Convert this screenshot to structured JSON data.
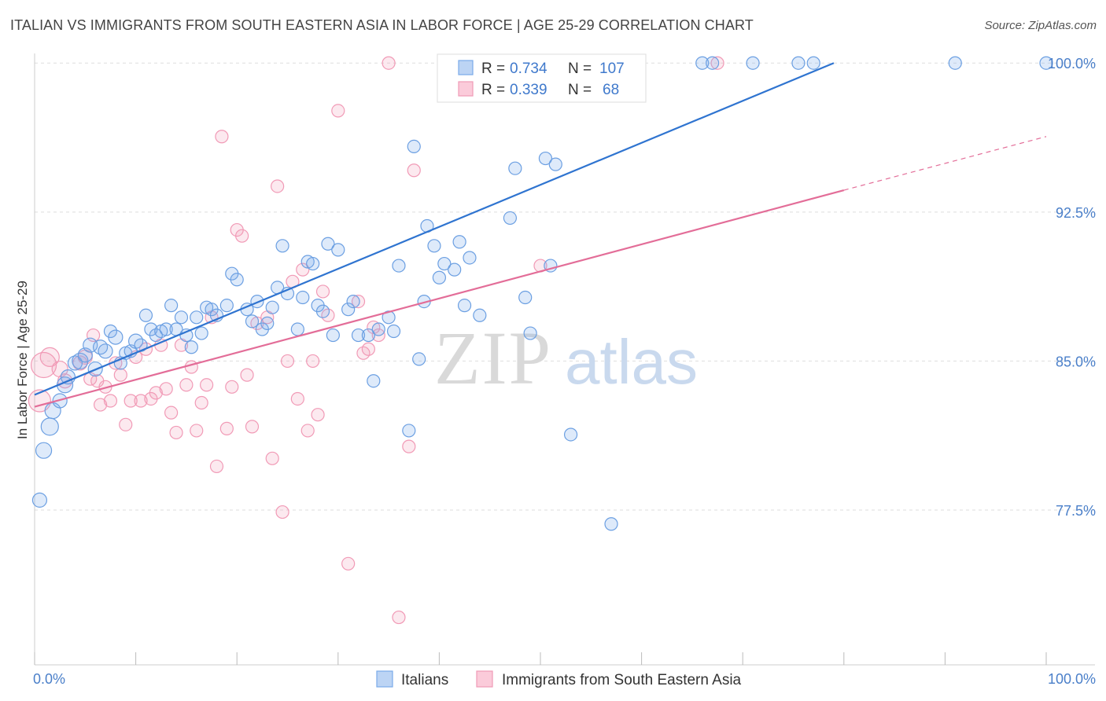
{
  "title": "ITALIAN VS IMMIGRANTS FROM SOUTH EASTERN ASIA IN LABOR FORCE | AGE 25-29 CORRELATION CHART",
  "source": "Source: ZipAtlas.com",
  "watermark": {
    "zip": "ZIP",
    "atlas": "atlas"
  },
  "legend": {
    "rows": [
      {
        "r_label": "R = ",
        "r_value": "0.734",
        "n_label": "N = ",
        "n_value": "107",
        "color": "#7aabea"
      },
      {
        "r_label": "R = ",
        "r_value": "0.339",
        "n_label": "N = ",
        "n_value": " 68",
        "color": "#f19ab6"
      }
    ]
  },
  "bottom_legend": [
    {
      "label": "Italians",
      "color": "#7aabea"
    },
    {
      "label": "Immigrants from South Eastern Asia",
      "color": "#f19ab6"
    }
  ],
  "chart_data": {
    "type": "scatter",
    "title": "ITALIAN VS IMMIGRANTS FROM SOUTH EASTERN ASIA IN LABOR FORCE | AGE 25-29 CORRELATION CHART",
    "xlabel": "",
    "ylabel": "In Labor Force | Age 25-29",
    "xlim": [
      0,
      100
    ],
    "ylim": [
      70.5,
      100.8
    ],
    "y_ticks": [
      77.5,
      85.0,
      92.5,
      100.0
    ],
    "y_tick_labels": [
      "77.5%",
      "85.0%",
      "92.5%",
      "100.0%"
    ],
    "x_tick_labels": [
      "0.0%",
      "100.0%"
    ],
    "grid": "horizontal dashed",
    "legend_position": "top-center",
    "series": [
      {
        "name": "Italians",
        "color": "#7aabea",
        "line_color": "#2f74d0",
        "trend": {
          "x0": 0,
          "y0": 83.3,
          "x1": 79,
          "y1": 100.0
        },
        "points": [
          [
            0.5,
            78.0,
            9
          ],
          [
            0.9,
            80.5,
            10
          ],
          [
            1.5,
            81.7,
            11
          ],
          [
            1.8,
            82.5,
            10
          ],
          [
            2.5,
            83.0,
            9
          ],
          [
            3.0,
            83.8,
            10
          ],
          [
            3.3,
            84.2,
            9
          ],
          [
            4.0,
            84.9,
            9
          ],
          [
            4.5,
            85.0,
            10
          ],
          [
            5.0,
            85.3,
            9
          ],
          [
            5.5,
            85.8,
            9
          ],
          [
            6.0,
            84.6,
            9
          ],
          [
            6.5,
            85.7,
            9
          ],
          [
            7.0,
            85.5,
            9
          ],
          [
            7.5,
            86.5,
            8
          ],
          [
            8.0,
            86.2,
            9
          ],
          [
            8.5,
            84.9,
            8
          ],
          [
            9.0,
            85.4,
            8
          ],
          [
            9.5,
            85.5,
            8
          ],
          [
            10.0,
            86.0,
            9
          ],
          [
            10.5,
            85.8,
            8
          ],
          [
            11.0,
            87.3,
            8
          ],
          [
            11.5,
            86.6,
            8
          ],
          [
            12.0,
            86.3,
            8
          ],
          [
            12.5,
            86.5,
            8
          ],
          [
            13.0,
            86.6,
            8
          ],
          [
            13.5,
            87.8,
            8
          ],
          [
            14.0,
            86.6,
            8
          ],
          [
            14.5,
            87.2,
            8
          ],
          [
            15.0,
            86.3,
            8
          ],
          [
            15.5,
            85.7,
            8
          ],
          [
            16.0,
            87.2,
            8
          ],
          [
            16.5,
            86.4,
            8
          ],
          [
            17.0,
            87.7,
            8
          ],
          [
            17.5,
            87.6,
            8
          ],
          [
            18.0,
            87.3,
            8
          ],
          [
            19.0,
            87.8,
            8
          ],
          [
            19.5,
            89.4,
            8
          ],
          [
            20.0,
            89.1,
            8
          ],
          [
            21.0,
            87.6,
            8
          ],
          [
            21.5,
            87.0,
            8
          ],
          [
            22.0,
            88.0,
            8
          ],
          [
            22.5,
            86.6,
            8
          ],
          [
            23.0,
            86.9,
            8
          ],
          [
            23.5,
            87.7,
            8
          ],
          [
            24.0,
            88.7,
            8
          ],
          [
            24.5,
            90.8,
            8
          ],
          [
            25.0,
            88.4,
            8
          ],
          [
            26.0,
            86.6,
            8
          ],
          [
            26.5,
            88.2,
            8
          ],
          [
            27.0,
            90.0,
            8
          ],
          [
            27.5,
            89.9,
            8
          ],
          [
            28.0,
            87.8,
            8
          ],
          [
            28.5,
            87.5,
            8
          ],
          [
            29.0,
            90.9,
            8
          ],
          [
            29.5,
            86.3,
            8
          ],
          [
            30.0,
            90.6,
            8
          ],
          [
            31.0,
            87.6,
            8
          ],
          [
            31.5,
            88.0,
            8
          ],
          [
            32.0,
            86.3,
            8
          ],
          [
            33.0,
            86.3,
            8
          ],
          [
            33.5,
            84.0,
            8
          ],
          [
            34.0,
            86.6,
            8
          ],
          [
            35.0,
            87.2,
            8
          ],
          [
            35.5,
            86.5,
            8
          ],
          [
            36.0,
            89.8,
            8
          ],
          [
            37.0,
            81.5,
            8
          ],
          [
            37.5,
            95.8,
            8
          ],
          [
            38.0,
            85.1,
            8
          ],
          [
            38.5,
            88.0,
            8
          ],
          [
            38.8,
            91.8,
            8
          ],
          [
            39.5,
            90.8,
            8
          ],
          [
            40.0,
            89.2,
            8
          ],
          [
            40.5,
            89.9,
            8
          ],
          [
            41.0,
            100.0,
            8
          ],
          [
            41.5,
            89.6,
            8
          ],
          [
            42.0,
            91.0,
            8
          ],
          [
            42.5,
            87.8,
            8
          ],
          [
            43.0,
            90.2,
            8
          ],
          [
            44.0,
            87.3,
            8
          ],
          [
            45.0,
            100.0,
            8
          ],
          [
            46.5,
            100.0,
            8
          ],
          [
            47.0,
            92.2,
            8
          ],
          [
            47.5,
            94.7,
            8
          ],
          [
            48.5,
            88.2,
            8
          ],
          [
            49.0,
            86.4,
            8
          ],
          [
            49.5,
            100.0,
            8
          ],
          [
            50.5,
            95.2,
            8
          ],
          [
            51.0,
            89.8,
            8
          ],
          [
            51.5,
            94.9,
            8
          ],
          [
            52.5,
            100.0,
            8
          ],
          [
            53.0,
            81.3,
            8
          ],
          [
            55.0,
            100.0,
            8
          ],
          [
            56.0,
            100.0,
            8
          ],
          [
            57.0,
            76.8,
            8
          ],
          [
            58.0,
            100.0,
            8
          ],
          [
            59.0,
            100.0,
            8
          ],
          [
            66.0,
            100.0,
            8
          ],
          [
            67.0,
            100.0,
            8
          ],
          [
            71.0,
            100.0,
            8
          ],
          [
            75.5,
            100.0,
            8
          ],
          [
            77.0,
            100.0,
            8
          ],
          [
            91.0,
            100.0,
            8
          ],
          [
            100.0,
            100.0,
            8
          ]
        ]
      },
      {
        "name": "Immigrants from South Eastern Asia",
        "color": "#f19ab6",
        "line_color": "#e36d98",
        "trend": {
          "x0": 0,
          "y0": 82.7,
          "x1": 80,
          "y1": 93.6,
          "dash_x1": 100,
          "dash_y1": 96.3
        },
        "points": [
          [
            0.5,
            83.0,
            14
          ],
          [
            0.9,
            84.8,
            16
          ],
          [
            1.5,
            85.2,
            12
          ],
          [
            2.5,
            84.6,
            10
          ],
          [
            3.0,
            84.0,
            9
          ],
          [
            4.5,
            84.9,
            9
          ],
          [
            5.0,
            85.2,
            9
          ],
          [
            5.5,
            84.1,
            8
          ],
          [
            5.8,
            86.3,
            8
          ],
          [
            6.2,
            84.0,
            8
          ],
          [
            6.5,
            82.8,
            8
          ],
          [
            7.0,
            83.7,
            8
          ],
          [
            7.5,
            83.0,
            8
          ],
          [
            8.0,
            84.9,
            8
          ],
          [
            8.5,
            84.3,
            8
          ],
          [
            9.0,
            81.8,
            8
          ],
          [
            9.5,
            83.0,
            8
          ],
          [
            10.0,
            85.2,
            8
          ],
          [
            10.5,
            83.0,
            8
          ],
          [
            11.0,
            85.6,
            8
          ],
          [
            11.5,
            83.1,
            8
          ],
          [
            12.0,
            83.4,
            8
          ],
          [
            12.5,
            85.8,
            8
          ],
          [
            13.0,
            83.6,
            8
          ],
          [
            13.5,
            82.4,
            8
          ],
          [
            14.0,
            81.4,
            8
          ],
          [
            14.5,
            85.8,
            8
          ],
          [
            15.0,
            83.8,
            8
          ],
          [
            15.5,
            84.7,
            8
          ],
          [
            16.0,
            81.5,
            8
          ],
          [
            16.5,
            82.9,
            8
          ],
          [
            17.0,
            83.8,
            8
          ],
          [
            17.5,
            87.2,
            8
          ],
          [
            18.0,
            79.7,
            8
          ],
          [
            18.5,
            96.3,
            8
          ],
          [
            19.0,
            81.6,
            8
          ],
          [
            19.5,
            83.7,
            8
          ],
          [
            20.0,
            91.6,
            8
          ],
          [
            20.5,
            91.3,
            8
          ],
          [
            21.0,
            84.3,
            8
          ],
          [
            21.5,
            81.7,
            8
          ],
          [
            22.0,
            86.9,
            8
          ],
          [
            23.0,
            87.2,
            8
          ],
          [
            23.5,
            80.1,
            8
          ],
          [
            24.0,
            93.8,
            8
          ],
          [
            24.5,
            77.4,
            8
          ],
          [
            25.0,
            85.0,
            8
          ],
          [
            25.5,
            89.0,
            8
          ],
          [
            26.0,
            83.1,
            8
          ],
          [
            26.5,
            89.6,
            8
          ],
          [
            27.0,
            81.5,
            8
          ],
          [
            27.5,
            85.0,
            8
          ],
          [
            28.0,
            82.3,
            8
          ],
          [
            28.5,
            88.5,
            8
          ],
          [
            29.0,
            87.3,
            8
          ],
          [
            30.0,
            97.6,
            8
          ],
          [
            31.0,
            74.8,
            8
          ],
          [
            32.0,
            88.0,
            8
          ],
          [
            32.5,
            85.4,
            8
          ],
          [
            33.0,
            85.6,
            8
          ],
          [
            33.5,
            86.7,
            8
          ],
          [
            34.0,
            86.3,
            8
          ],
          [
            35.0,
            100.0,
            8
          ],
          [
            36.0,
            72.1,
            8
          ],
          [
            37.0,
            80.7,
            8
          ],
          [
            37.5,
            94.6,
            8
          ],
          [
            50.0,
            89.8,
            8
          ],
          [
            67.5,
            100.0,
            8
          ]
        ]
      }
    ]
  }
}
